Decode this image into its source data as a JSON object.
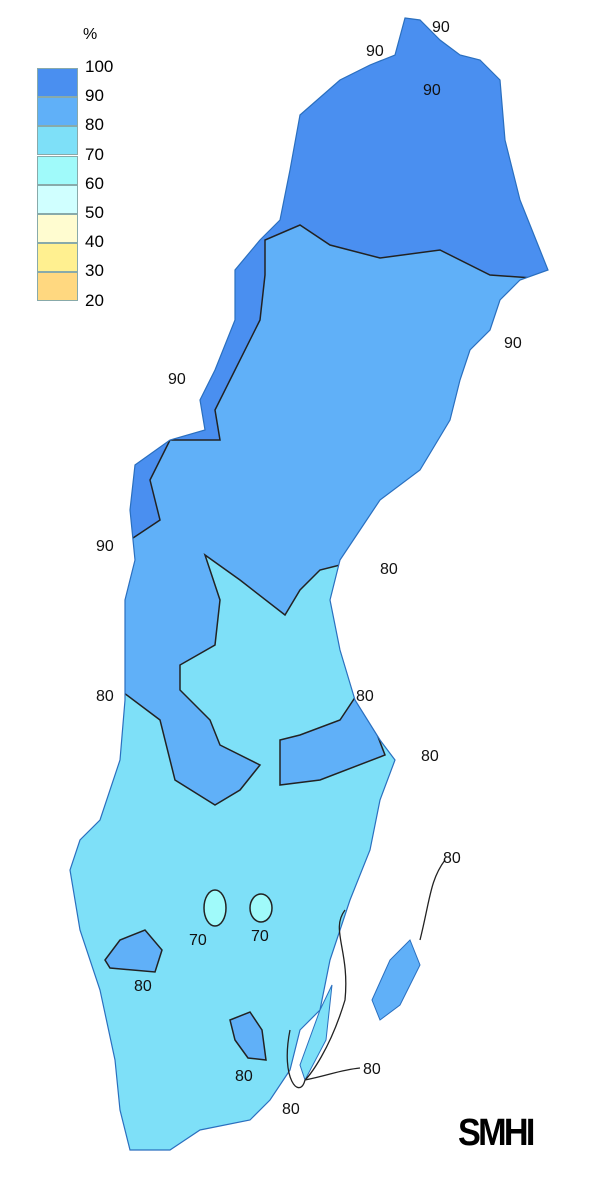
{
  "legend": {
    "unit": "%",
    "ticks": [
      "100",
      "90",
      "80",
      "70",
      "60",
      "50",
      "40",
      "30",
      "20"
    ],
    "colors": [
      "#4a8ff0",
      "#60b0f8",
      "#7ee0f8",
      "#a0fafa",
      "#d0ffff",
      "#fffcd0",
      "#fff090",
      "#ffd880"
    ]
  },
  "contour_labels": {
    "l90": [
      "90",
      "90",
      "90",
      "90",
      "90",
      "90"
    ],
    "l80": [
      "80",
      "80",
      "80",
      "80",
      "80",
      "80",
      "80",
      "80",
      "80"
    ],
    "l70": [
      "70",
      "70"
    ]
  },
  "logo": "SMHI"
}
